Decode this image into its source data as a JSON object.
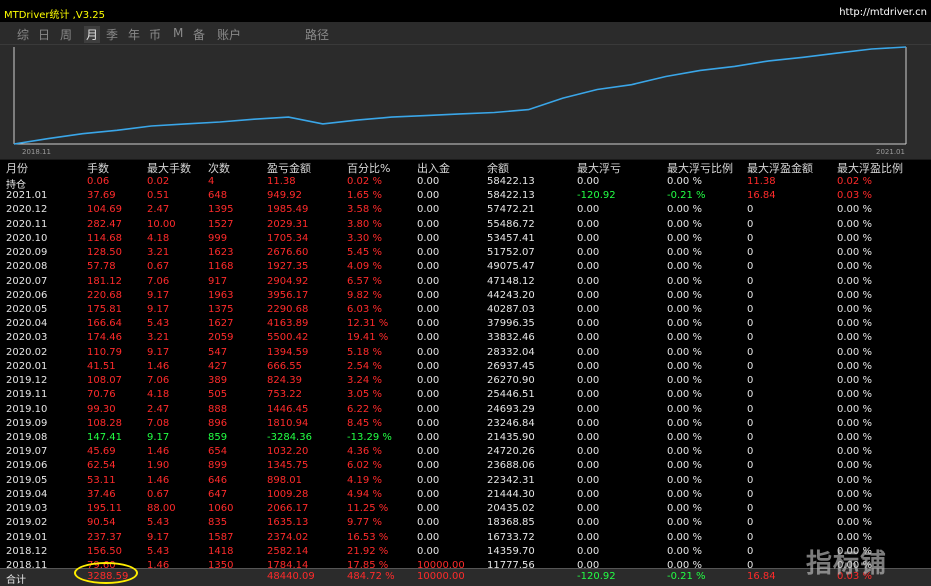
{
  "app": {
    "title": "MTDriver统计 ,V3.25",
    "site": "http://mtdriver.cn",
    "watermark": "指标铺"
  },
  "tabs": [
    {
      "label": "综",
      "active": false
    },
    {
      "label": "日",
      "active": false
    },
    {
      "label": "周",
      "active": false
    },
    {
      "label": "月",
      "active": true
    },
    {
      "label": "季",
      "active": false
    },
    {
      "label": "年",
      "active": false
    },
    {
      "label": "币",
      "active": false
    },
    {
      "label": "M",
      "active": false
    },
    {
      "label": "备",
      "active": false
    },
    {
      "label": "账户",
      "active": false
    },
    {
      "label": "路径",
      "active": false
    }
  ],
  "chart_data": {
    "type": "line",
    "x_start_label": "2018.11",
    "x_end_label": "2021.01",
    "line_color": "#3aa6e8",
    "x": [
      "2018.11",
      "2018.12",
      "2019.01",
      "2019.02",
      "2019.03",
      "2019.04",
      "2019.05",
      "2019.06",
      "2019.07",
      "2019.08",
      "2019.09",
      "2019.10",
      "2019.11",
      "2019.12",
      "2020.01",
      "2020.02",
      "2020.03",
      "2020.04",
      "2020.05",
      "2020.06",
      "2020.07",
      "2020.08",
      "2020.09",
      "2020.10",
      "2020.11",
      "2020.12",
      "2021.01"
    ],
    "values": [
      11777.56,
      14359.7,
      16733.72,
      18368.85,
      20435.02,
      21444.3,
      22342.31,
      23688.06,
      24720.26,
      21435.9,
      23246.84,
      24693.29,
      25446.51,
      26270.9,
      26937.45,
      28332.04,
      33832.46,
      37996.35,
      40287.03,
      44243.2,
      47148.12,
      49075.47,
      51752.07,
      53457.41,
      55486.72,
      57472.21,
      58422.13
    ]
  },
  "table": {
    "headers": [
      "月份",
      "手数",
      "最大手数",
      "次数",
      "盈亏金额",
      "百分比%",
      "出入金",
      "余额",
      "最大浮亏",
      "最大浮亏比例",
      "最大浮盈金额",
      "最大浮盈比例"
    ],
    "rows": [
      {
        "c": [
          "持仓",
          "0.06",
          "0.02",
          "4",
          "11.38",
          "0.02 %",
          "0.00",
          "58422.13",
          "0.00",
          "0.00 %",
          "11.38",
          "0.02 %"
        ],
        "k": "w"
      },
      {
        "c": [
          "2021.01",
          "37.69",
          "0.51",
          "648",
          "949.92",
          "1.65 %",
          "0.00",
          "58422.13",
          "-120.92",
          "-0.21 %",
          "16.84",
          "0.03 %"
        ],
        "k": "r"
      },
      {
        "c": [
          "2020.12",
          "104.69",
          "2.47",
          "1395",
          "1985.49",
          "3.58 %",
          "0.00",
          "57472.21",
          "0.00",
          "0.00 %",
          "0",
          "0.00 %"
        ],
        "k": "r"
      },
      {
        "c": [
          "2020.11",
          "282.47",
          "10.00",
          "1527",
          "2029.31",
          "3.80 %",
          "0.00",
          "55486.72",
          "0.00",
          "0.00 %",
          "0",
          "0.00 %"
        ],
        "k": "r"
      },
      {
        "c": [
          "2020.10",
          "114.68",
          "4.18",
          "999",
          "1705.34",
          "3.30 %",
          "0.00",
          "53457.41",
          "0.00",
          "0.00 %",
          "0",
          "0.00 %"
        ],
        "k": "r"
      },
      {
        "c": [
          "2020.09",
          "128.50",
          "3.21",
          "1623",
          "2676.60",
          "5.45 %",
          "0.00",
          "51752.07",
          "0.00",
          "0.00 %",
          "0",
          "0.00 %"
        ],
        "k": "r"
      },
      {
        "c": [
          "2020.08",
          "57.78",
          "0.67",
          "1168",
          "1927.35",
          "4.09 %",
          "0.00",
          "49075.47",
          "0.00",
          "0.00 %",
          "0",
          "0.00 %"
        ],
        "k": "r"
      },
      {
        "c": [
          "2020.07",
          "181.12",
          "7.06",
          "917",
          "2904.92",
          "6.57 %",
          "0.00",
          "47148.12",
          "0.00",
          "0.00 %",
          "0",
          "0.00 %"
        ],
        "k": "r"
      },
      {
        "c": [
          "2020.06",
          "220.68",
          "9.17",
          "1963",
          "3956.17",
          "9.82 %",
          "0.00",
          "44243.20",
          "0.00",
          "0.00 %",
          "0",
          "0.00 %"
        ],
        "k": "r"
      },
      {
        "c": [
          "2020.05",
          "175.81",
          "9.17",
          "1375",
          "2290.68",
          "6.03 %",
          "0.00",
          "40287.03",
          "0.00",
          "0.00 %",
          "0",
          "0.00 %"
        ],
        "k": "r"
      },
      {
        "c": [
          "2020.04",
          "166.64",
          "5.43",
          "1627",
          "4163.89",
          "12.31 %",
          "0.00",
          "37996.35",
          "0.00",
          "0.00 %",
          "0",
          "0.00 %"
        ],
        "k": "r"
      },
      {
        "c": [
          "2020.03",
          "174.46",
          "3.21",
          "2059",
          "5500.42",
          "19.41 %",
          "0.00",
          "33832.46",
          "0.00",
          "0.00 %",
          "0",
          "0.00 %"
        ],
        "k": "r"
      },
      {
        "c": [
          "2020.02",
          "110.79",
          "9.17",
          "547",
          "1394.59",
          "5.18 %",
          "0.00",
          "28332.04",
          "0.00",
          "0.00 %",
          "0",
          "0.00 %"
        ],
        "k": "r"
      },
      {
        "c": [
          "2020.01",
          "41.51",
          "1.46",
          "427",
          "666.55",
          "2.54 %",
          "0.00",
          "26937.45",
          "0.00",
          "0.00 %",
          "0",
          "0.00 %"
        ],
        "k": "r"
      },
      {
        "c": [
          "2019.12",
          "108.07",
          "7.06",
          "389",
          "824.39",
          "3.24 %",
          "0.00",
          "26270.90",
          "0.00",
          "0.00 %",
          "0",
          "0.00 %"
        ],
        "k": "r"
      },
      {
        "c": [
          "2019.11",
          "70.76",
          "4.18",
          "505",
          "753.22",
          "3.05 %",
          "0.00",
          "25446.51",
          "0.00",
          "0.00 %",
          "0",
          "0.00 %"
        ],
        "k": "r"
      },
      {
        "c": [
          "2019.10",
          "99.30",
          "2.47",
          "888",
          "1446.45",
          "6.22 %",
          "0.00",
          "24693.29",
          "0.00",
          "0.00 %",
          "0",
          "0.00 %"
        ],
        "k": "r"
      },
      {
        "c": [
          "2019.09",
          "108.28",
          "7.08",
          "896",
          "1810.94",
          "8.45 %",
          "0.00",
          "23246.84",
          "0.00",
          "0.00 %",
          "0",
          "0.00 %"
        ],
        "k": "r"
      },
      {
        "c": [
          "2019.08",
          "147.41",
          "9.17",
          "859",
          "-3284.36",
          "-13.29 %",
          "0.00",
          "21435.90",
          "0.00",
          "0.00 %",
          "0",
          "0.00 %"
        ],
        "k": "g"
      },
      {
        "c": [
          "2019.07",
          "45.69",
          "1.46",
          "654",
          "1032.20",
          "4.36 %",
          "0.00",
          "24720.26",
          "0.00",
          "0.00 %",
          "0",
          "0.00 %"
        ],
        "k": "r"
      },
      {
        "c": [
          "2019.06",
          "62.54",
          "1.90",
          "899",
          "1345.75",
          "6.02 %",
          "0.00",
          "23688.06",
          "0.00",
          "0.00 %",
          "0",
          "0.00 %"
        ],
        "k": "r"
      },
      {
        "c": [
          "2019.05",
          "53.11",
          "1.46",
          "646",
          "898.01",
          "4.19 %",
          "0.00",
          "22342.31",
          "0.00",
          "0.00 %",
          "0",
          "0.00 %"
        ],
        "k": "r"
      },
      {
        "c": [
          "2019.04",
          "37.46",
          "0.67",
          "647",
          "1009.28",
          "4.94 %",
          "0.00",
          "21444.30",
          "0.00",
          "0.00 %",
          "0",
          "0.00 %"
        ],
        "k": "r"
      },
      {
        "c": [
          "2019.03",
          "195.11",
          "88.00",
          "1060",
          "2066.17",
          "11.25 %",
          "0.00",
          "20435.02",
          "0.00",
          "0.00 %",
          "0",
          "0.00 %"
        ],
        "k": "r"
      },
      {
        "c": [
          "2019.02",
          "90.54",
          "5.43",
          "835",
          "1635.13",
          "9.77 %",
          "0.00",
          "18368.85",
          "0.00",
          "0.00 %",
          "0",
          "0.00 %"
        ],
        "k": "r"
      },
      {
        "c": [
          "2019.01",
          "237.37",
          "9.17",
          "1587",
          "2374.02",
          "16.53 %",
          "0.00",
          "16733.72",
          "0.00",
          "0.00 %",
          "0",
          "0.00 %"
        ],
        "k": "r"
      },
      {
        "c": [
          "2018.12",
          "156.50",
          "5.43",
          "1418",
          "2582.14",
          "21.92 %",
          "0.00",
          "14359.70",
          "0.00",
          "0.00 %",
          "0",
          "0.00 %"
        ],
        "k": "r"
      },
      {
        "c": [
          "2018.11",
          "79.60",
          "1.46",
          "1350",
          "1784.14",
          "17.85 %",
          "10000.00",
          "11777.56",
          "0.00",
          "0.00 %",
          "0",
          "0.00 %"
        ],
        "k": "r"
      }
    ],
    "total": [
      "合计",
      "3288.59",
      "",
      "",
      "48440.09",
      "484.72 %",
      "10000.00",
      "",
      "-120.92",
      "-0.21 %",
      "16.84",
      "0.03 %"
    ]
  }
}
